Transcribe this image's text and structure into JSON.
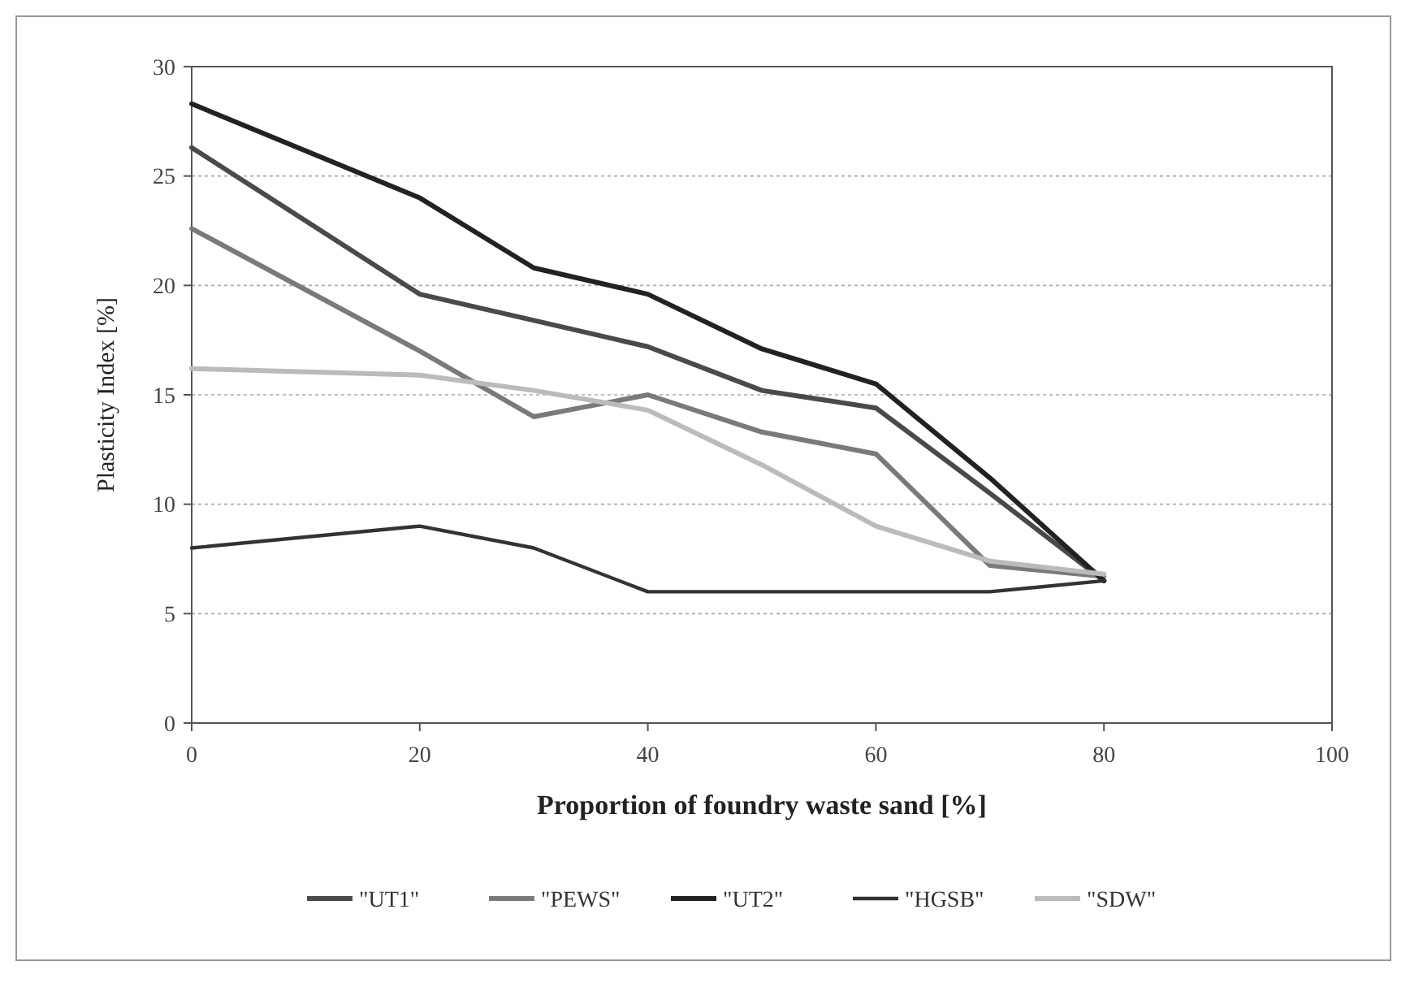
{
  "chart_data": {
    "type": "line",
    "xlabel": "Proportion of foundry waste sand [%]",
    "ylabel": "Plasticity Index [%]",
    "x": [
      0,
      20,
      30,
      40,
      50,
      60,
      70,
      80
    ],
    "series": [
      {
        "name": "\"UT1\"",
        "color": "#4a4a4a",
        "values": [
          26.3,
          19.6,
          18.4,
          17.2,
          15.2,
          14.4,
          10.5,
          6.5
        ]
      },
      {
        "name": "\"PEWS\"",
        "color": "#7a7a7a",
        "values": [
          22.6,
          17,
          14,
          15,
          13.3,
          12.3,
          7.2,
          6.7
        ]
      },
      {
        "name": "\"UT2\"",
        "color": "#222222",
        "values": [
          28.3,
          24,
          20.8,
          19.6,
          17.1,
          15.5,
          11.2,
          6.5
        ]
      },
      {
        "name": "\"HGSB\"",
        "color": "#333333",
        "values": [
          8,
          9,
          8,
          6,
          6,
          6,
          6,
          6.5
        ]
      },
      {
        "name": "\"SDW\"",
        "color": "#bbbbbb",
        "values": [
          16.2,
          15.9,
          15.2,
          14.3,
          11.8,
          9,
          7.4,
          6.8
        ]
      }
    ],
    "xlim": [
      0,
      100
    ],
    "xticks": [
      0,
      20,
      40,
      60,
      80,
      100
    ],
    "ylim": [
      0,
      30
    ],
    "yticks": [
      0,
      5,
      10,
      15,
      20,
      25,
      30
    ],
    "grid": "y",
    "legend": "bottom",
    "marker": "none",
    "line_style": "solid"
  }
}
